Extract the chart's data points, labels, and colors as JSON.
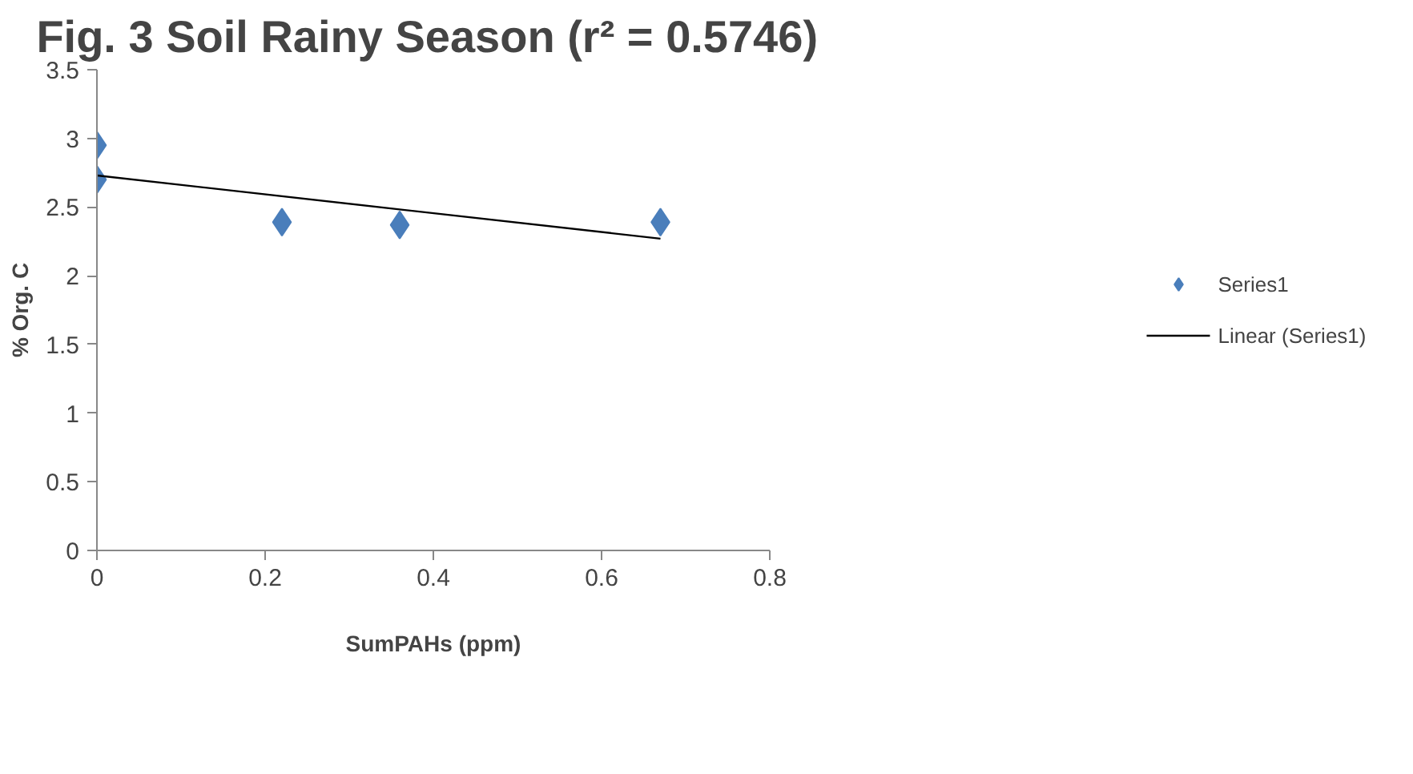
{
  "chart_data": {
    "type": "scatter",
    "title": "Fig. 3 Soil  Rainy Season (r² = 0.5746)",
    "xlabel": "SumPAHs (ppm)",
    "ylabel": "% Org. C",
    "xlim": [
      0,
      0.8
    ],
    "xticks": [
      0,
      0.2,
      0.4,
      0.6,
      0.8
    ],
    "ylim": [
      0,
      3.5
    ],
    "yticks": [
      0,
      0.5,
      1,
      1.5,
      2,
      2.5,
      3,
      3.5
    ],
    "grid": false,
    "legend": "right",
    "marker": "diamond",
    "series": [
      {
        "name": "Series1",
        "color": "#4a7ebb",
        "x": [
          0,
          0,
          0.22,
          0.36,
          0.67
        ],
        "values": [
          2.95,
          2.7,
          2.39,
          2.37,
          2.39
        ]
      },
      {
        "name": "Linear (Series1)",
        "type": "line",
        "color": "#000000",
        "x": [
          0,
          0.67
        ],
        "values": [
          2.73,
          2.27
        ],
        "marker": "none",
        "line_style": "solid"
      }
    ]
  }
}
